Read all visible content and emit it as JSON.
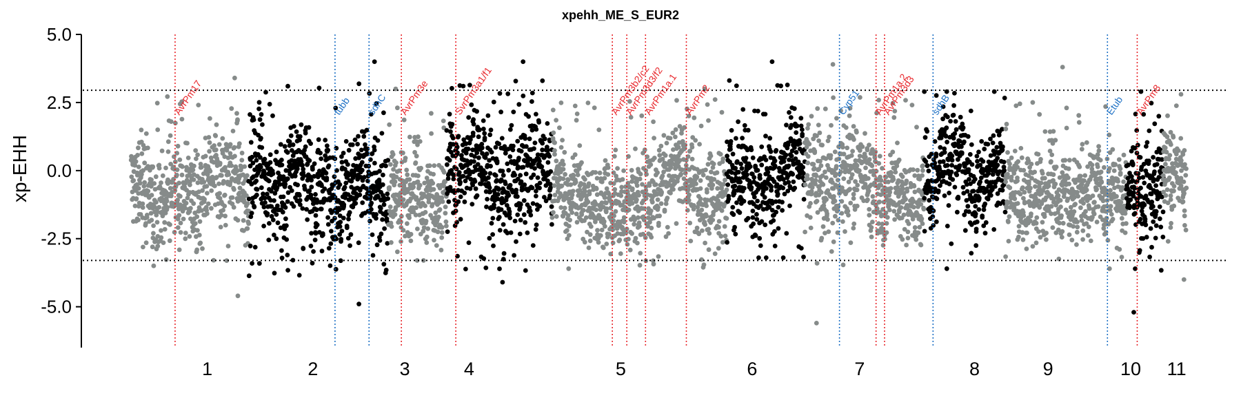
{
  "chart_data": {
    "type": "scatter",
    "title": "xpehh_ME_S_EUR2",
    "xlabel": "",
    "ylabel": "xp-EHH",
    "ylim": [
      -6.5,
      5.0
    ],
    "yticks": [
      "5.0",
      "2.5",
      "0.0",
      "-2.5",
      "-5.0"
    ],
    "ytick_values": [
      5.0,
      2.5,
      0.0,
      -2.5,
      -5.0
    ],
    "thresholds": [
      2.95,
      -3.3
    ],
    "x_unit": "genome position (chromosome 1-11 axis)",
    "xlim": [
      0.12,
      11.6
    ],
    "chromosomes": [
      {
        "label": "1",
        "start": 0.12,
        "end": 1.4,
        "tick": 0.95,
        "color": "#868b8a",
        "center": -0.6,
        "spread": 1.6,
        "max": 3.4,
        "min": -4.6
      },
      {
        "label": "2",
        "start": 1.4,
        "end": 2.92,
        "tick": 2.1,
        "color": "#000000",
        "center": -0.3,
        "spread": 1.7,
        "max": 4.0,
        "min": -4.9
      },
      {
        "label": "3",
        "start": 2.92,
        "end": 3.55,
        "tick": 3.1,
        "color": "#868b8a",
        "center": -0.6,
        "spread": 1.4,
        "max": 3.0,
        "min": -3.3
      },
      {
        "label": "4",
        "start": 3.55,
        "end": 4.7,
        "tick": 3.8,
        "color": "#000000",
        "center": -0.2,
        "spread": 1.7,
        "max": 4.0,
        "min": -4.1
      },
      {
        "label": "5",
        "start": 4.7,
        "end": 6.6,
        "tick": 5.45,
        "color": "#868b8a",
        "center": -0.5,
        "spread": 1.5,
        "max": 3.0,
        "min": -3.6
      },
      {
        "label": "6",
        "start": 6.6,
        "end": 7.45,
        "tick": 6.88,
        "color": "#000000",
        "center": 0.0,
        "spread": 1.6,
        "max": 4.0,
        "min": -3.2
      },
      {
        "label": "7",
        "start": 7.45,
        "end": 8.75,
        "tick": 8.05,
        "color": "#868b8a",
        "center": -0.4,
        "spread": 1.5,
        "max": 3.9,
        "min": -5.6
      },
      {
        "label": "8",
        "start": 8.75,
        "end": 9.63,
        "tick": 9.3,
        "color": "#000000",
        "center": -0.1,
        "spread": 1.5,
        "max": 2.9,
        "min": -3.6
      },
      {
        "label": "9",
        "start": 9.63,
        "end": 10.95,
        "tick": 10.1,
        "color": "#868b8a",
        "center": -0.4,
        "spread": 1.4,
        "max": 3.8,
        "min": -3.6
      },
      {
        "label": "10",
        "start": 10.95,
        "end": 11.35,
        "tick": 11.0,
        "color": "#000000",
        "center": -0.6,
        "spread": 1.5,
        "max": 2.9,
        "min": -5.2
      },
      {
        "label": "11",
        "start": 11.35,
        "end": 11.6,
        "tick": 11.5,
        "color": "#868b8a",
        "center": -0.5,
        "spread": 1.4,
        "max": 2.8,
        "min": -4.0
      }
    ],
    "genes": [
      {
        "name": "AvrPm17",
        "x": 0.84,
        "color": "#e8252a"
      },
      {
        "name": "tubb",
        "x": 2.72,
        "color": "#1b6fc4"
      },
      {
        "name": "sdhC",
        "x": 3.12,
        "color": "#1b6fc4"
      },
      {
        "name": "AvrPm3e",
        "x": 3.5,
        "color": "#e8252a"
      },
      {
        "name": "SvrPm3a1/f1",
        "x": 4.14,
        "color": "#e8252a"
      },
      {
        "name": "AvrPm3b2/c2",
        "x": 5.98,
        "color": "#e8252a"
      },
      {
        "name": "AvrPm3d3/f2",
        "x": 6.15,
        "color": "#e8252a"
      },
      {
        "name": "AvrPm1a.1",
        "x": 6.37,
        "color": "#e8252a"
      },
      {
        "name": "AvrPm2",
        "x": 6.85,
        "color": "#e8252a"
      },
      {
        "name": "Cyp51",
        "x": 8.65,
        "color": "#1b6fc4"
      },
      {
        "name": "AvrPm1a.2",
        "x": 9.08,
        "color": "#e8252a"
      },
      {
        "name": "AvrPm3d3",
        "x": 9.18,
        "color": "#e8252a"
      },
      {
        "name": "sdhB",
        "x": 9.75,
        "color": "#1b6fc4"
      },
      {
        "name": "Etub",
        "x": 11.8,
        "color": "#1b6fc4"
      },
      {
        "name": "AvrPm8",
        "x": 12.15,
        "color": "#e8252a"
      }
    ]
  }
}
